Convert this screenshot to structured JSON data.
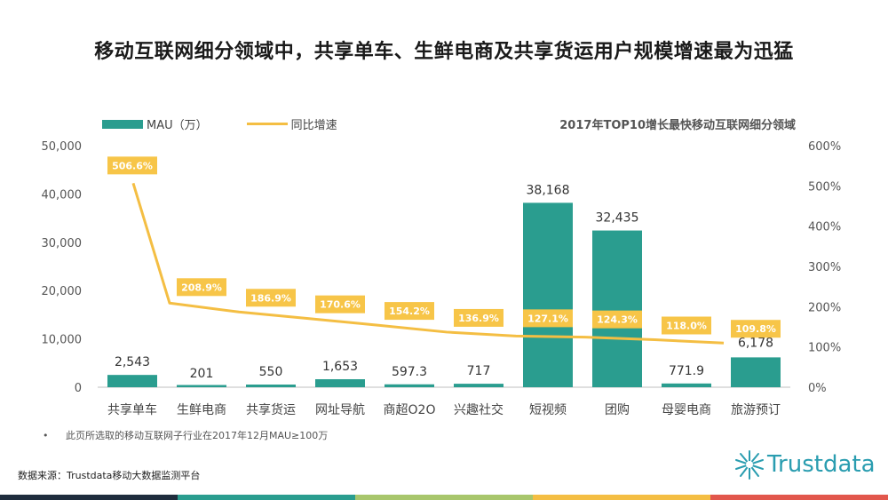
{
  "title": "移动互联网细分领域中，共享单车、生鲜电商及共享货运用户规模增速最为迅猛",
  "chart_data": {
    "type": "bar+line",
    "title": "2017年TOP10增长最快移动互联网细分领域",
    "categories": [
      "共享单车",
      "生鲜电商",
      "共享货运",
      "网址导航",
      "商超O2O",
      "兴趣社交",
      "短视频",
      "团购",
      "母婴电商",
      "旅游预订"
    ],
    "series": [
      {
        "name": "MAU（万）",
        "type": "bar",
        "axis": "left",
        "values": [
          2543,
          201,
          550,
          1653,
          597.3,
          717,
          38168,
          32435,
          771.9,
          6178
        ],
        "labels": [
          "2,543",
          "201",
          "550",
          "1,653",
          "597.3",
          "717",
          "38,168",
          "32,435",
          "771.9",
          "6,178"
        ]
      },
      {
        "name": "同比增速",
        "type": "line",
        "axis": "right",
        "values": [
          506.6,
          208.9,
          186.9,
          170.6,
          154.2,
          136.9,
          127.1,
          124.3,
          118.0,
          109.8
        ],
        "labels": [
          "506.6%",
          "208.9%",
          "186.9%",
          "170.6%",
          "154.2%",
          "136.9%",
          "127.1%",
          "124.3%",
          "118.0%",
          "109.8%"
        ]
      }
    ],
    "ylim_left": [
      0,
      50000
    ],
    "yticks_left": [
      "0",
      "10,000",
      "20,000",
      "30,000",
      "40,000",
      "50,000"
    ],
    "ylim_right": [
      0,
      600
    ],
    "yticks_right": [
      "0%",
      "100%",
      "200%",
      "300%",
      "400%",
      "500%",
      "600%"
    ],
    "legend": "top-left",
    "grid": false
  },
  "colors": {
    "bar": "#2a9d8f",
    "line": "#f4be43",
    "label_bg": "#f7c548"
  },
  "note": "此页所选取的移动互联网子行业在2017年12月MAU≥100万",
  "note_bullet": "•",
  "source": "数据来源：Trustdata移动大数据监测平台",
  "logo_text": "Trustdata"
}
